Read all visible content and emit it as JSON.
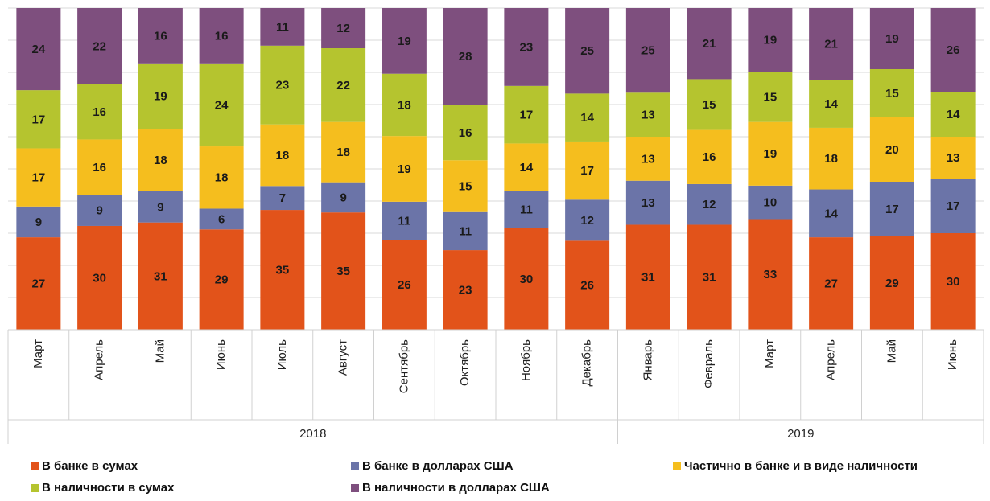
{
  "chart_data": {
    "type": "bar",
    "stacking": "percent",
    "categories": [
      "Март",
      "Апрель",
      "Май",
      "Июнь",
      "Июль",
      "Август",
      "Сентябрь",
      "Октябрь",
      "Ноябрь",
      "Декабрь",
      "Январь",
      "Февраль",
      "Март",
      "Апрель",
      "Май",
      "Июнь"
    ],
    "groups": [
      {
        "label": "2018",
        "span": 10
      },
      {
        "label": "2019",
        "span": 6
      }
    ],
    "series": [
      {
        "name": "В банке в сумах",
        "color": "#E2531A",
        "values": [
          27,
          30,
          31,
          29,
          35,
          35,
          26,
          23,
          30,
          26,
          31,
          31,
          33,
          27,
          29,
          30
        ]
      },
      {
        "name": "В банке в долларах США",
        "color": "#6B74A8",
        "values": [
          9,
          9,
          9,
          6,
          7,
          9,
          11,
          11,
          11,
          12,
          13,
          12,
          10,
          14,
          17,
          17
        ]
      },
      {
        "name": "Частично в банке и в виде наличности",
        "color": "#F5BE1E",
        "values": [
          17,
          16,
          18,
          18,
          18,
          18,
          19,
          15,
          14,
          17,
          13,
          16,
          19,
          18,
          20,
          13
        ]
      },
      {
        "name": "В наличности в сумах",
        "color": "#B5C42F",
        "values": [
          17,
          16,
          19,
          24,
          23,
          22,
          18,
          16,
          17,
          14,
          13,
          15,
          15,
          14,
          15,
          14
        ]
      },
      {
        "name": "В наличности в долларах США",
        "color": "#7E4F7E",
        "values": [
          24,
          22,
          16,
          16,
          11,
          12,
          19,
          28,
          23,
          25,
          25,
          21,
          19,
          21,
          19,
          26
        ]
      }
    ],
    "ylim": [
      0,
      100
    ],
    "yticks": [
      0,
      10,
      20,
      30,
      40,
      50,
      60,
      70,
      80,
      90,
      100
    ],
    "ytick_labels": false,
    "grid": true,
    "legend": "bottom"
  }
}
